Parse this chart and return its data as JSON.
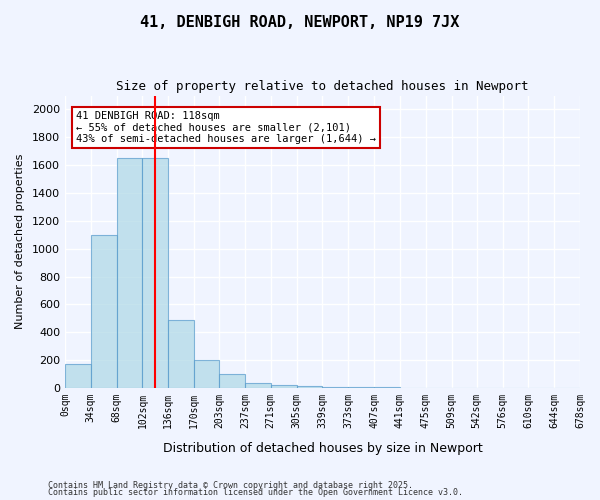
{
  "title1": "41, DENBIGH ROAD, NEWPORT, NP19 7JX",
  "title2": "Size of property relative to detached houses in Newport",
  "xlabel": "Distribution of detached houses by size in Newport",
  "ylabel": "Number of detached properties",
  "bar_values": [
    170,
    1100,
    1650,
    1650,
    490,
    200,
    100,
    35,
    25,
    15,
    10,
    5,
    5,
    2,
    2,
    1,
    1,
    0,
    0,
    0
  ],
  "bin_edges": [
    0,
    34,
    68,
    102,
    136,
    170,
    203,
    237,
    271,
    305,
    339,
    373,
    407,
    441,
    475,
    509,
    542,
    576,
    610,
    644,
    678
  ],
  "tick_labels": [
    "0sqm",
    "34sqm",
    "68sqm",
    "102sqm",
    "136sqm",
    "170sqm",
    "203sqm",
    "237sqm",
    "271sqm",
    "305sqm",
    "339sqm",
    "373sqm",
    "407sqm",
    "441sqm",
    "475sqm",
    "509sqm",
    "542sqm",
    "576sqm",
    "610sqm",
    "644sqm",
    "678sqm"
  ],
  "bar_color": "#add8e6",
  "bar_edge_color": "#5599cc",
  "bar_alpha": 0.7,
  "red_line_x": 118,
  "annotation_text": "41 DENBIGH ROAD: 118sqm\n← 55% of detached houses are smaller (2,101)\n43% of semi-detached houses are larger (1,644) →",
  "annotation_box_color": "#ffffff",
  "annotation_edge_color": "#cc0000",
  "background_color": "#f0f4ff",
  "grid_color": "#ffffff",
  "ylim": [
    0,
    2100
  ],
  "footer1": "Contains HM Land Registry data © Crown copyright and database right 2025.",
  "footer2": "Contains public sector information licensed under the Open Government Licence v3.0."
}
